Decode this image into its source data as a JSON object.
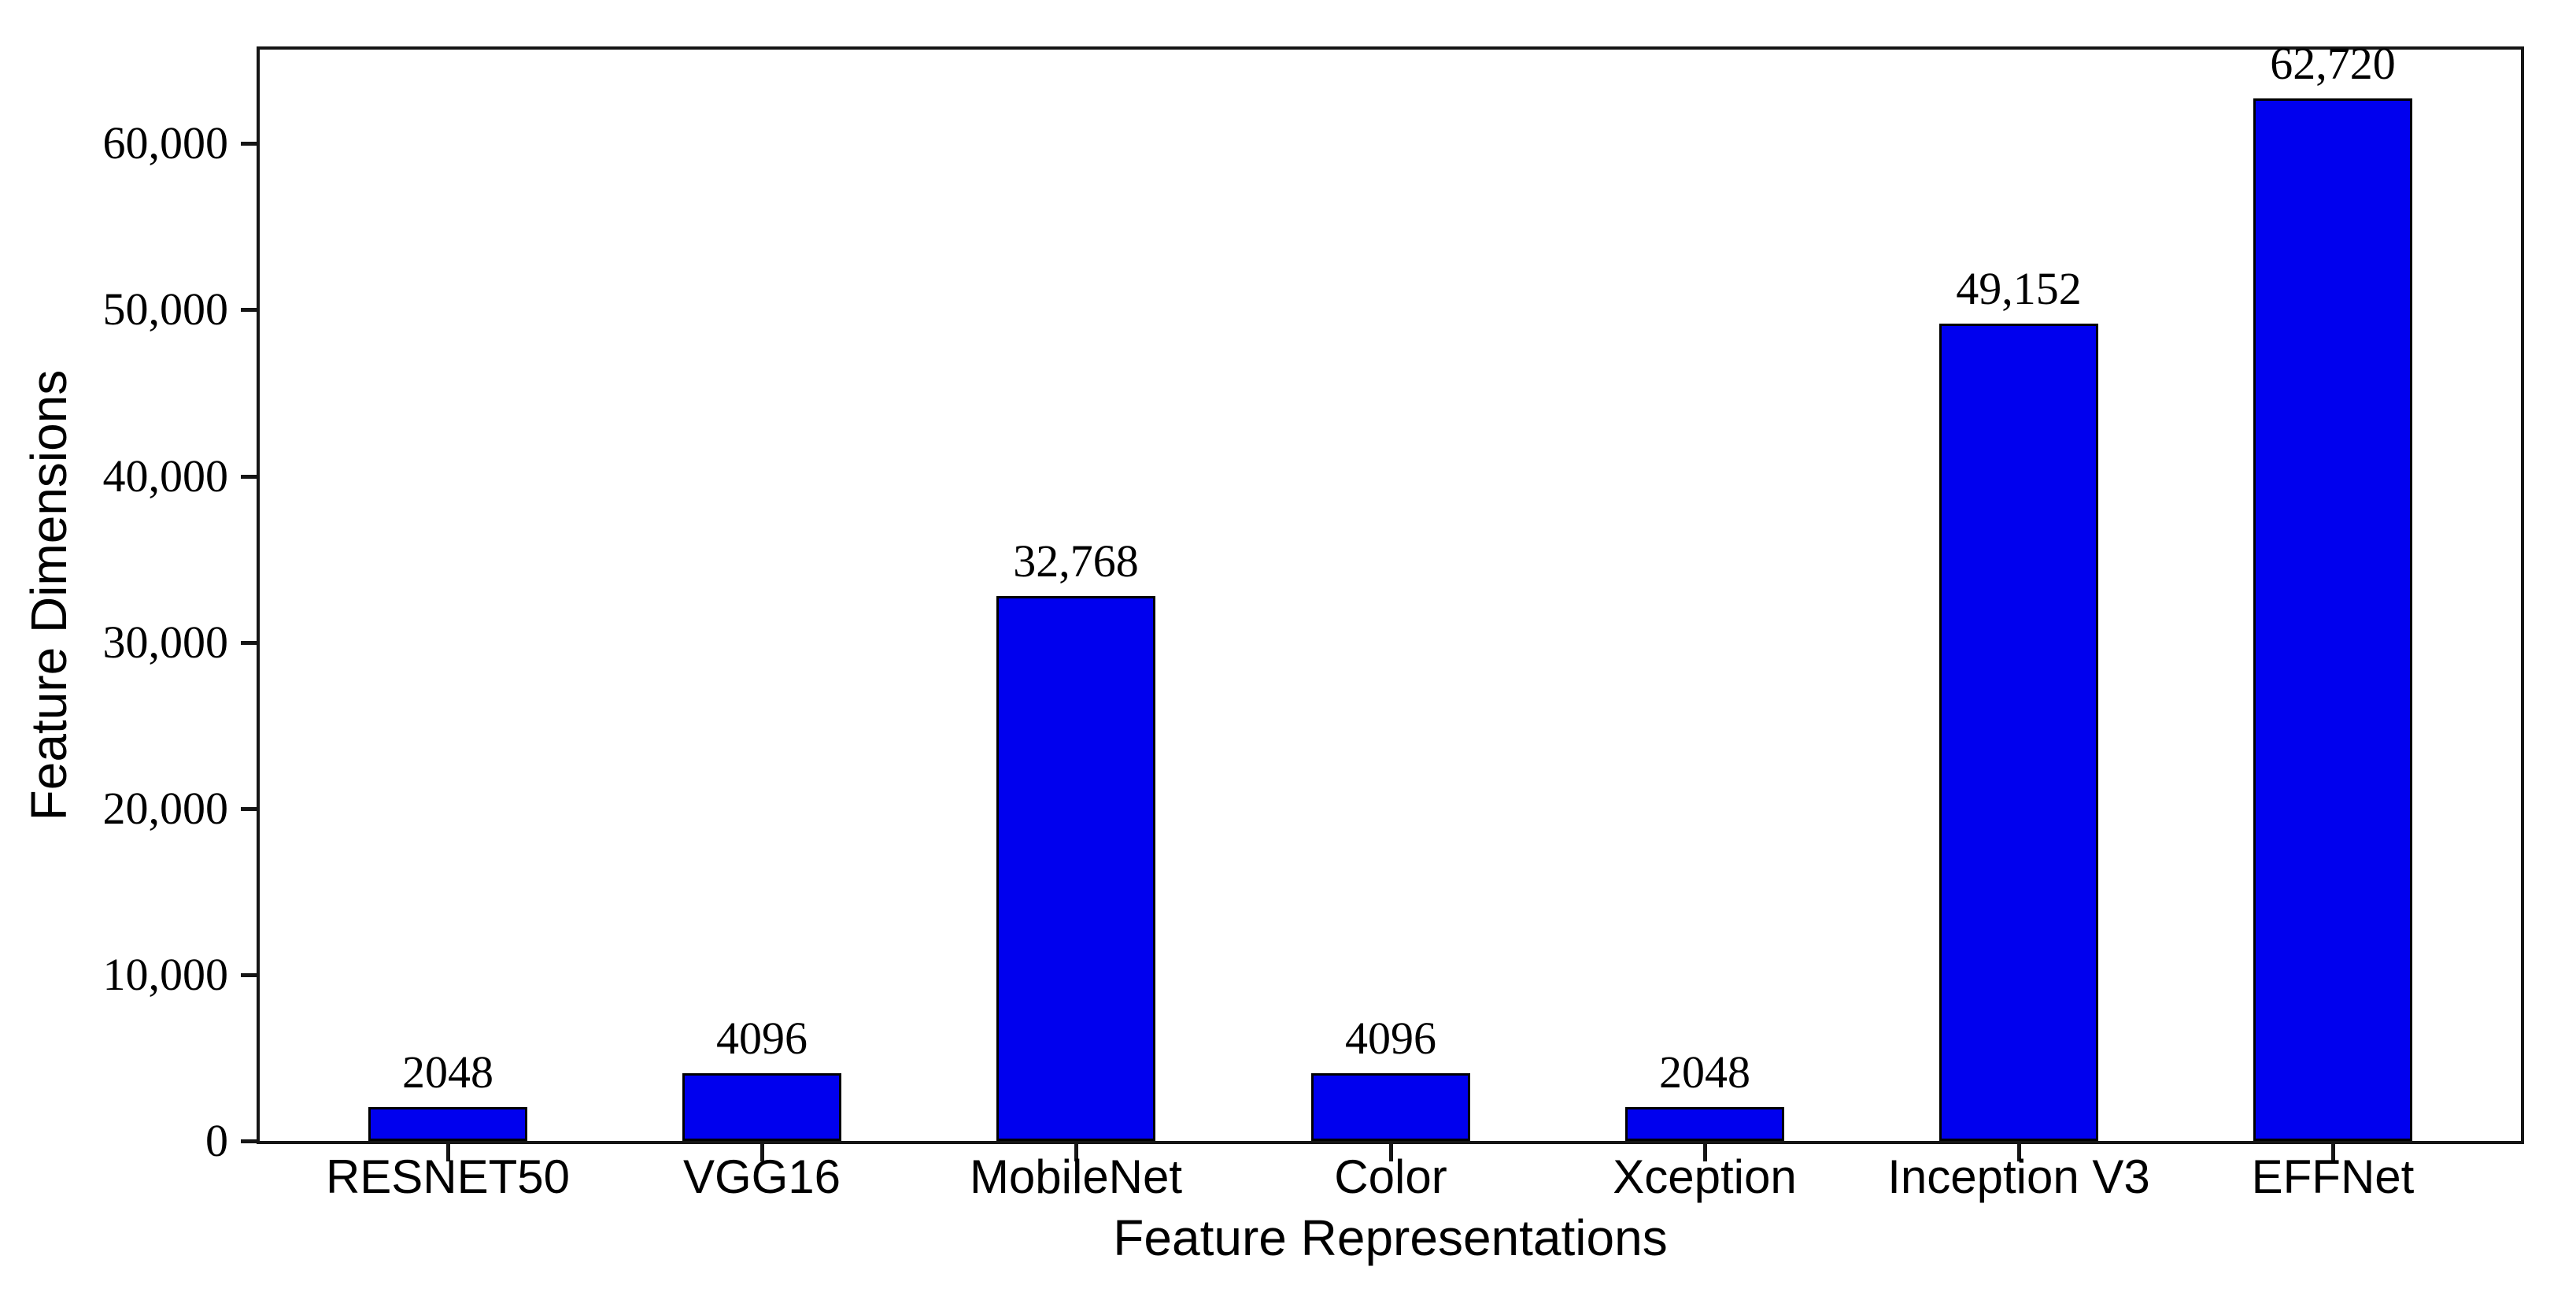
{
  "chart_data": {
    "type": "bar",
    "title": "",
    "xlabel": "Feature Representations",
    "ylabel": "Feature Dimensions",
    "categories": [
      "RESNET50",
      "VGG16",
      "MobileNet",
      "Color",
      "Xception",
      "Inception V3",
      "EFFNet"
    ],
    "values": [
      2048,
      4096,
      32768,
      4096,
      2048,
      49152,
      62720
    ],
    "bar_labels": [
      "2048",
      "4096",
      "32,768",
      "4096",
      "2048",
      "49,152",
      "62,720"
    ],
    "yticks": [
      0,
      10000,
      20000,
      30000,
      40000,
      50000,
      60000
    ],
    "ytick_labels": [
      "0",
      "10,000",
      "20,000",
      "30,000",
      "40,000",
      "50,000",
      "60,000"
    ],
    "ylim": [
      0,
      65650
    ],
    "grid": false,
    "legend": false,
    "frame": true,
    "bar_color": "#0000EE",
    "bar_edge_color": "#000000",
    "text_color": "#000000",
    "axis_color": "#151515"
  }
}
